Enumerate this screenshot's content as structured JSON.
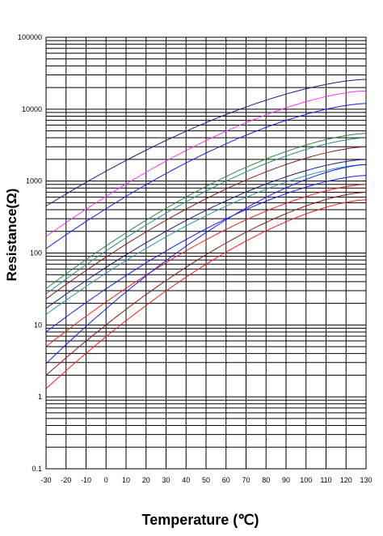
{
  "chart_data": {
    "type": "line",
    "xlabel": "Temperature (℃)",
    "ylabel": "Resistance(Ω)",
    "xlim": [
      -30,
      130
    ],
    "ylim": [
      0.1,
      100000
    ],
    "yscale": "log",
    "grid": true,
    "x_ticks": [
      -30,
      -20,
      -10,
      0,
      10,
      20,
      30,
      40,
      50,
      60,
      70,
      80,
      90,
      100,
      110,
      120,
      130
    ],
    "y_ticks": [
      "0.1",
      "1",
      "10",
      "100",
      "1000",
      "10000",
      "100000"
    ],
    "x": [
      -30,
      130
    ],
    "series": [
      {
        "color": "#1a1a8c",
        "values": [
          450,
          26000
        ]
      },
      {
        "color": "#ff33ff",
        "values": [
          170,
          18000
        ]
      },
      {
        "color": "#1a1aff",
        "values": [
          115,
          12000
        ]
      },
      {
        "color": "#2e8b2e",
        "values": [
          32,
          4600
        ]
      },
      {
        "color": "#2e8b8b",
        "values": [
          27,
          4000
        ]
      },
      {
        "color": "#8b1a1a",
        "values": [
          23,
          3000
        ]
      },
      {
        "color": "#1a1a8c",
        "values": [
          17,
          2000
        ]
      },
      {
        "color": "#2a9d9d",
        "values": [
          14,
          1700
        ]
      },
      {
        "color": "#1a1aff",
        "values": [
          8,
          1200
        ]
      },
      {
        "color": "#ff1a1a",
        "values": [
          5,
          900
        ]
      },
      {
        "color": "#1a1aff",
        "values": [
          2.9,
          1700
        ]
      },
      {
        "color": "#8b1a1a",
        "values": [
          2,
          700
        ]
      },
      {
        "color": "#ff1a1a",
        "values": [
          1.3,
          550
        ]
      }
    ]
  }
}
